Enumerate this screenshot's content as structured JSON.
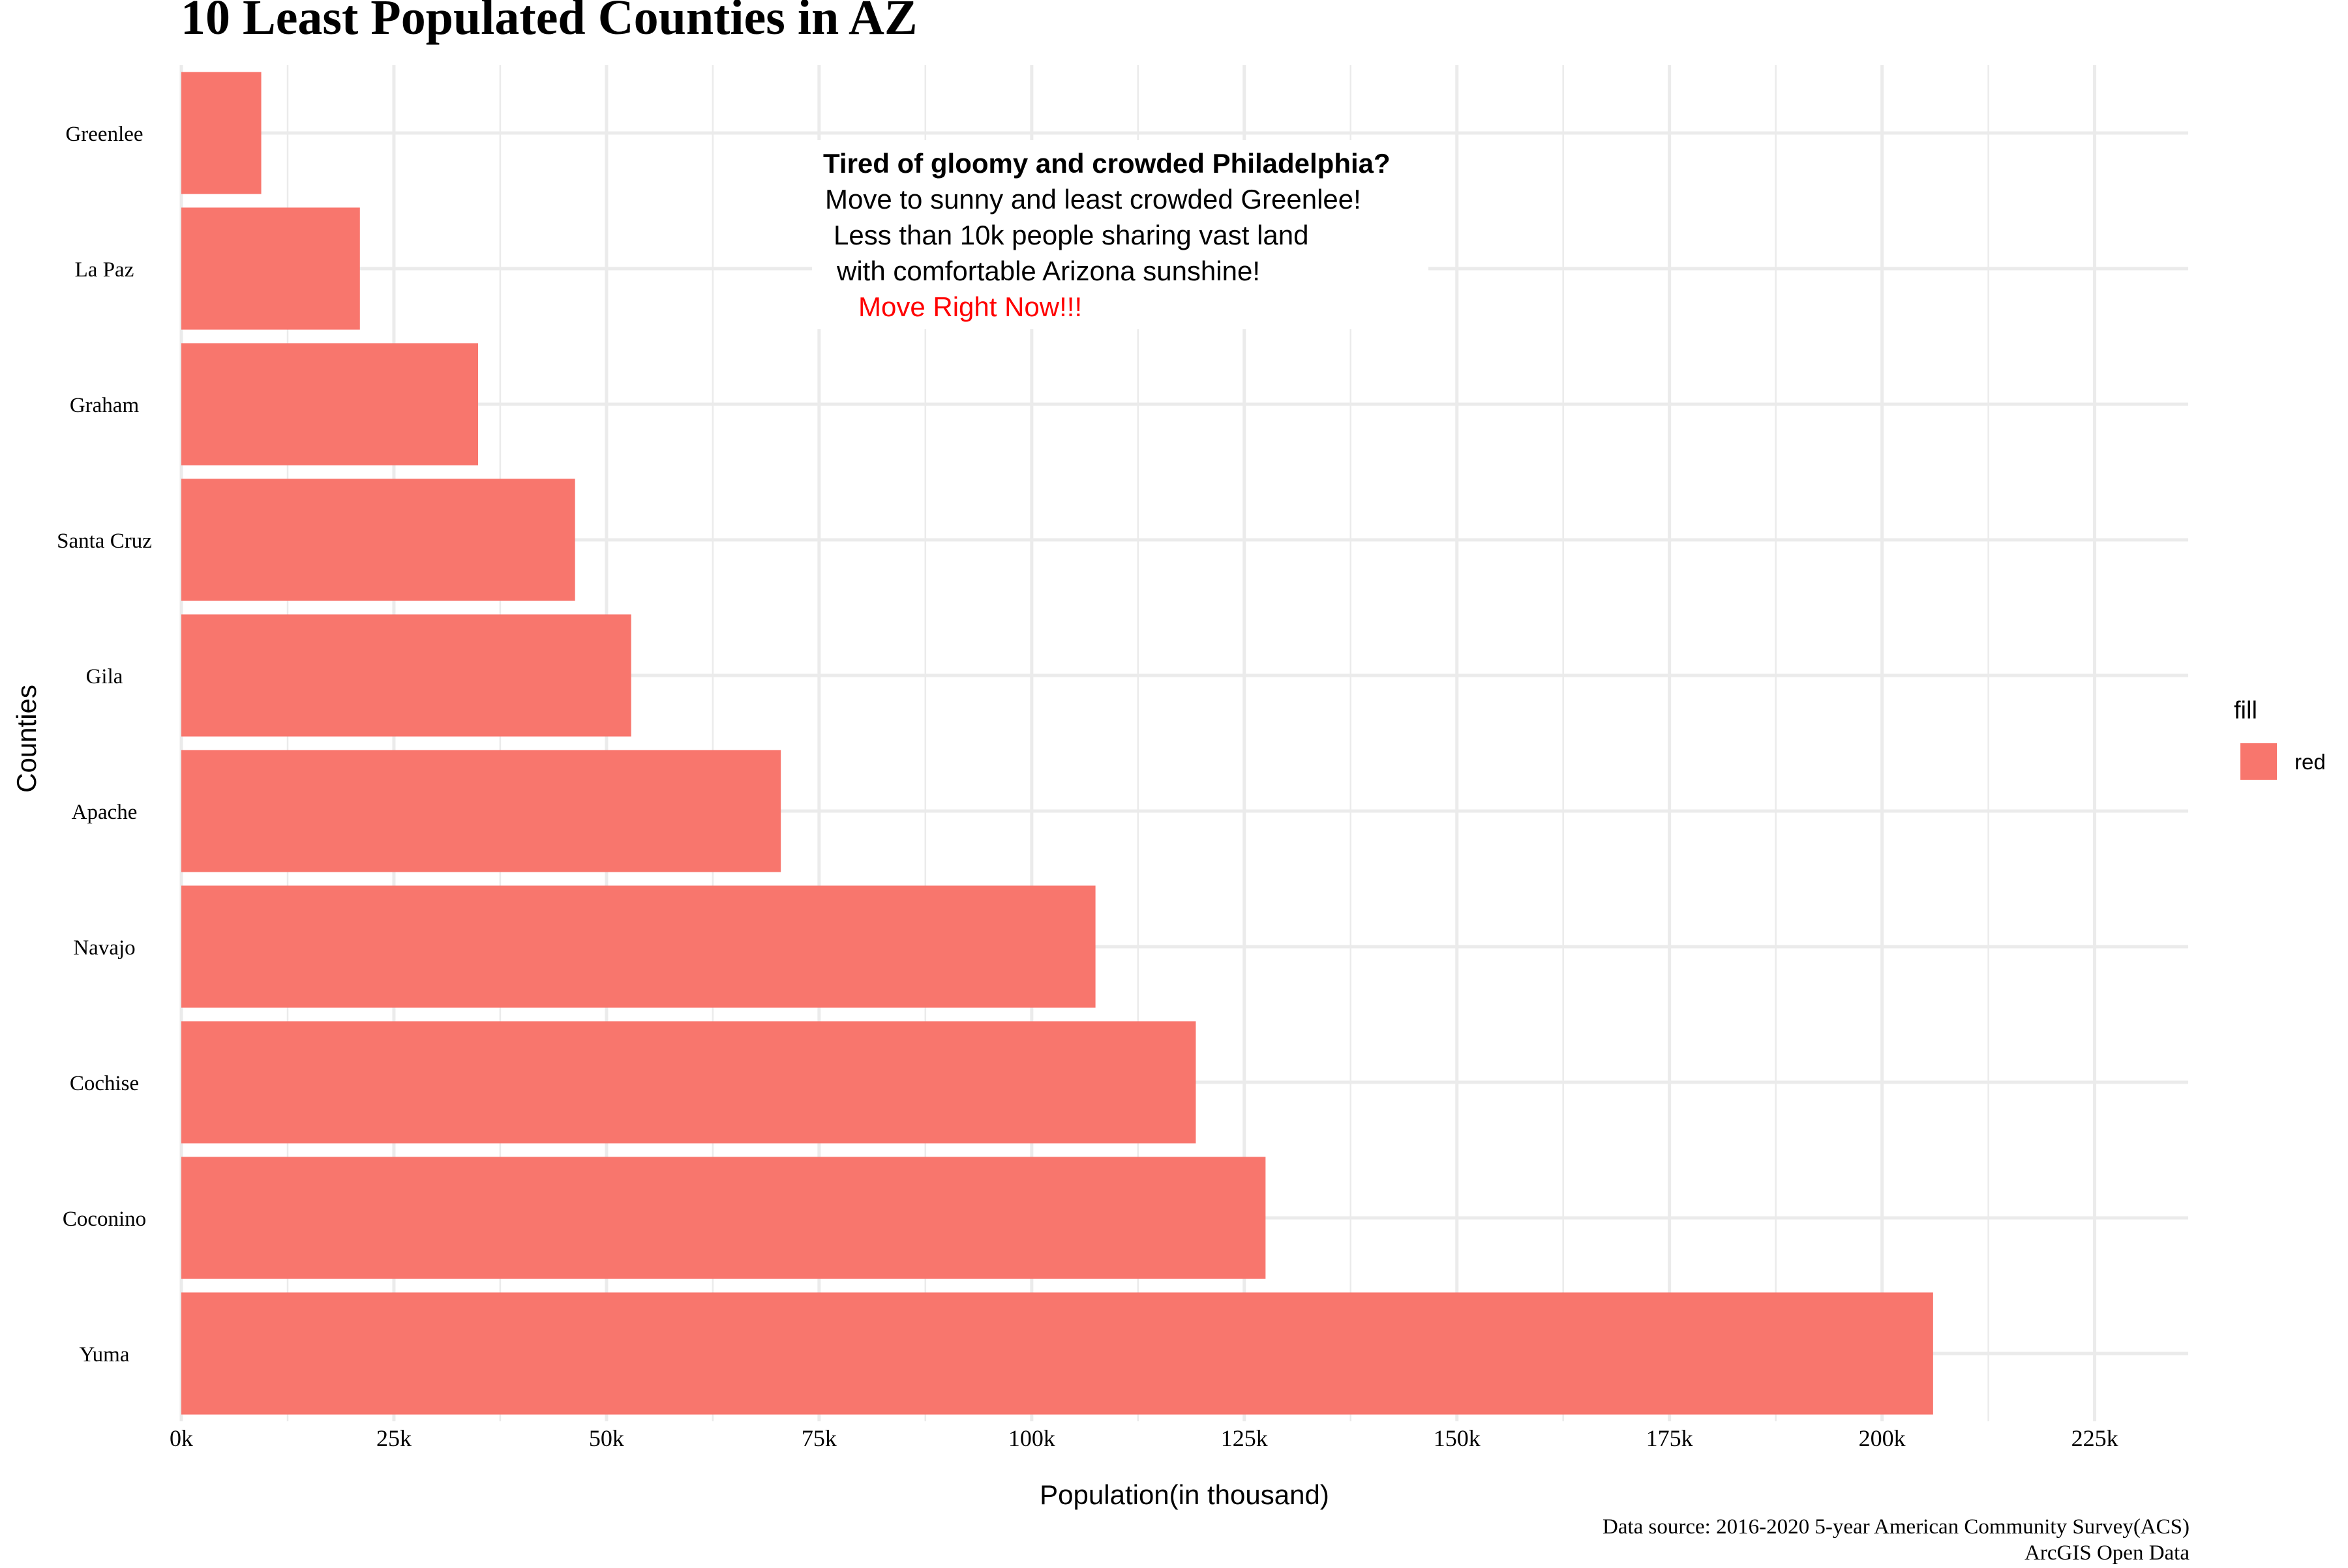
{
  "chart_data": {
    "type": "bar",
    "orientation": "horizontal",
    "title": "10 Least Populated Counties in AZ",
    "xlabel": "Population(in thousand)",
    "ylabel": "Counties",
    "categories": [
      "Greenlee",
      "La Paz",
      "Graham",
      "Santa Cruz",
      "Gila",
      "Apache",
      "Navajo",
      "Cochise",
      "Coconino",
      "Yuma"
    ],
    "values": [
      9400,
      21000,
      34900,
      46300,
      52900,
      70500,
      107500,
      119300,
      127500,
      206000
    ],
    "xlim": [
      0,
      236000
    ],
    "x_ticks": [
      0,
      25000,
      50000,
      75000,
      100000,
      125000,
      150000,
      175000,
      200000,
      225000
    ],
    "x_tick_labels": [
      "0k",
      "25k",
      "50k",
      "75k",
      "100k",
      "125k",
      "150k",
      "175k",
      "200k",
      "225k"
    ],
    "bar_color": "#F8766D",
    "grid": true,
    "legend": {
      "title": "fill",
      "entries": [
        {
          "label": "red",
          "color": "#F8766D"
        }
      ],
      "position": "right"
    },
    "annotation": {
      "lines": [
        "Tired of gloomy and crowded Philadelphia?",
        "Move to sunny and least crowded Greenlee!",
        "Less than 10k people sharing vast land",
        "with comfortable Arizona sunshine!",
        "Move Right Now!!!"
      ],
      "highlight_color": "#FF0000"
    },
    "caption": [
      "Data source: 2016-2020 5-year American Community Survey(ACS)",
      "ArcGIS Open Data"
    ]
  }
}
